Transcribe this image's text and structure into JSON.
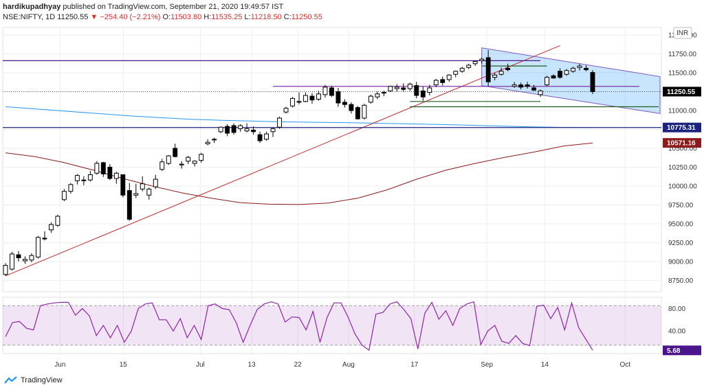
{
  "header": {
    "publisher": "hardikupadhyay",
    "published_text": "published on TradingView.com, September 21, 2020 19:49:57 IST",
    "symbol": "NSE:NIFTY, 1D",
    "last": "11250.55",
    "change": "−254.40 (−2.21%)",
    "o_label": "O:",
    "o_value": "11503.80",
    "h_label": "H:",
    "h_value": "11535.25",
    "l_label": "L:",
    "l_value": "11218.50",
    "c_label": "C:",
    "c_value": "11250.55"
  },
  "currency": "INR",
  "price_labels": {
    "last": "11250.55",
    "blue_ma": "10775.31",
    "red_ma": "10571.16",
    "rsi": "5.68"
  },
  "brand": "TradingView",
  "colors": {
    "bull": "#ffffff",
    "bear": "#000000",
    "purple": "#4a148c",
    "blue_ma": "#2196f3",
    "red_ma": "#8b1a1a",
    "trend": "#c62828",
    "green_level": "#1b5e20",
    "rsi": "#8e24aa",
    "channel_fill": "rgba(33,150,243,0.25)"
  },
  "chart_data": [
    {
      "type": "candlestick",
      "title": "NSE:NIFTY, 1D",
      "x_ticks": [
        "Jun",
        "15",
        "Jul",
        "13",
        "22",
        "Aug",
        "17",
        "Sep",
        "14",
        "Oct"
      ],
      "y_ticks": [
        12000,
        11750,
        11500,
        11250,
        11000,
        10750,
        10500,
        10250,
        10000,
        9750,
        9500,
        9250,
        9000,
        8750
      ],
      "y_tick_labels": [
        "12000.00",
        "11750.00",
        "11500.00",
        "11250.00",
        "11000.00",
        "10750.00",
        "10500.00",
        "10250.00",
        "10000.00",
        "9750.00",
        "9500.00",
        "9250.00",
        "9000.00",
        "8750.00"
      ],
      "ylim": [
        8600,
        12100
      ],
      "candles": [
        {
          "o": 8830,
          "h": 8980,
          "l": 8810,
          "c": 8950
        },
        {
          "o": 8900,
          "h": 9130,
          "l": 8880,
          "c": 9100
        },
        {
          "o": 9090,
          "h": 9140,
          "l": 9000,
          "c": 9050
        },
        {
          "o": 9010,
          "h": 9070,
          "l": 8970,
          "c": 9030
        },
        {
          "o": 9020,
          "h": 9110,
          "l": 8990,
          "c": 9080
        },
        {
          "o": 9060,
          "h": 9340,
          "l": 9040,
          "c": 9320
        },
        {
          "o": 9310,
          "h": 9400,
          "l": 9280,
          "c": 9300
        },
        {
          "o": 9420,
          "h": 9520,
          "l": 9380,
          "c": 9490
        },
        {
          "o": 9480,
          "h": 9620,
          "l": 9460,
          "c": 9600
        },
        {
          "o": 9820,
          "h": 9960,
          "l": 9800,
          "c": 9930
        },
        {
          "o": 9930,
          "h": 10040,
          "l": 9900,
          "c": 10020
        },
        {
          "o": 10070,
          "h": 10160,
          "l": 10020,
          "c": 10140
        },
        {
          "o": 10080,
          "h": 10130,
          "l": 10010,
          "c": 10070
        },
        {
          "o": 10080,
          "h": 10200,
          "l": 10060,
          "c": 10150
        },
        {
          "o": 10170,
          "h": 10330,
          "l": 10150,
          "c": 10300
        },
        {
          "o": 10310,
          "h": 10320,
          "l": 10120,
          "c": 10160
        },
        {
          "o": 10250,
          "h": 10290,
          "l": 10080,
          "c": 10100
        },
        {
          "o": 10100,
          "h": 10190,
          "l": 10030,
          "c": 10170
        },
        {
          "o": 10150,
          "h": 10150,
          "l": 9850,
          "c": 9880
        },
        {
          "o": 9940,
          "h": 10040,
          "l": 9540,
          "c": 9560
        },
        {
          "o": 9880,
          "h": 10030,
          "l": 9840,
          "c": 9900
        },
        {
          "o": 9960,
          "h": 10130,
          "l": 9930,
          "c": 10030
        },
        {
          "o": 9880,
          "h": 9980,
          "l": 9820,
          "c": 9960
        },
        {
          "o": 9990,
          "h": 10150,
          "l": 9960,
          "c": 10090
        },
        {
          "o": 10220,
          "h": 10360,
          "l": 10200,
          "c": 10320
        },
        {
          "o": 10300,
          "h": 10410,
          "l": 10280,
          "c": 10400
        },
        {
          "o": 10500,
          "h": 10560,
          "l": 10380,
          "c": 10390
        },
        {
          "o": 10280,
          "h": 10330,
          "l": 10230,
          "c": 10290
        },
        {
          "o": 10330,
          "h": 10400,
          "l": 10290,
          "c": 10380
        },
        {
          "o": 10300,
          "h": 10340,
          "l": 10260,
          "c": 10330
        },
        {
          "o": 10340,
          "h": 10440,
          "l": 10310,
          "c": 10420
        },
        {
          "o": 10560,
          "h": 10620,
          "l": 10540,
          "c": 10580
        },
        {
          "o": 10610,
          "h": 10640,
          "l": 10570,
          "c": 10620
        },
        {
          "o": 10720,
          "h": 10790,
          "l": 10700,
          "c": 10780
        },
        {
          "o": 10790,
          "h": 10820,
          "l": 10660,
          "c": 10700
        },
        {
          "o": 10800,
          "h": 10830,
          "l": 10680,
          "c": 10710
        },
        {
          "o": 10760,
          "h": 10820,
          "l": 10720,
          "c": 10800
        },
        {
          "o": 10730,
          "h": 10830,
          "l": 10710,
          "c": 10760
        },
        {
          "o": 10740,
          "h": 10790,
          "l": 10680,
          "c": 10720
        },
        {
          "o": 10680,
          "h": 10720,
          "l": 10570,
          "c": 10600
        },
        {
          "o": 10620,
          "h": 10720,
          "l": 10600,
          "c": 10690
        },
        {
          "o": 10720,
          "h": 10770,
          "l": 10650,
          "c": 10760
        },
        {
          "o": 10780,
          "h": 10920,
          "l": 10760,
          "c": 10900
        },
        {
          "o": 10980,
          "h": 11050,
          "l": 10960,
          "c": 11030
        },
        {
          "o": 11060,
          "h": 11180,
          "l": 11040,
          "c": 11160
        },
        {
          "o": 11120,
          "h": 11240,
          "l": 11080,
          "c": 11110
        },
        {
          "o": 11120,
          "h": 11240,
          "l": 11110,
          "c": 11200
        },
        {
          "o": 11190,
          "h": 11230,
          "l": 11090,
          "c": 11140
        },
        {
          "o": 11150,
          "h": 11260,
          "l": 11130,
          "c": 11220
        },
        {
          "o": 11210,
          "h": 11340,
          "l": 11170,
          "c": 11310
        },
        {
          "o": 11300,
          "h": 11330,
          "l": 11180,
          "c": 11200
        },
        {
          "o": 11250,
          "h": 11300,
          "l": 11050,
          "c": 11100
        },
        {
          "o": 11110,
          "h": 11150,
          "l": 11040,
          "c": 11080
        },
        {
          "o": 11080,
          "h": 11110,
          "l": 10960,
          "c": 11000
        },
        {
          "o": 11040,
          "h": 11060,
          "l": 10880,
          "c": 10890
        },
        {
          "o": 10900,
          "h": 11090,
          "l": 10880,
          "c": 11070
        },
        {
          "o": 11110,
          "h": 11210,
          "l": 11090,
          "c": 11190
        },
        {
          "o": 11180,
          "h": 11250,
          "l": 11150,
          "c": 11220
        },
        {
          "o": 11230,
          "h": 11260,
          "l": 11190,
          "c": 11240
        },
        {
          "o": 11260,
          "h": 11330,
          "l": 11250,
          "c": 11320
        },
        {
          "o": 11290,
          "h": 11350,
          "l": 11250,
          "c": 11310
        },
        {
          "o": 11300,
          "h": 11360,
          "l": 11250,
          "c": 11280
        },
        {
          "o": 11290,
          "h": 11370,
          "l": 11260,
          "c": 11350
        },
        {
          "o": 11330,
          "h": 11380,
          "l": 11160,
          "c": 11200
        },
        {
          "o": 11260,
          "h": 11320,
          "l": 11130,
          "c": 11180
        },
        {
          "o": 11240,
          "h": 11340,
          "l": 11200,
          "c": 11300
        },
        {
          "o": 11340,
          "h": 11420,
          "l": 11310,
          "c": 11400
        },
        {
          "o": 11410,
          "h": 11450,
          "l": 11330,
          "c": 11370
        },
        {
          "o": 11410,
          "h": 11480,
          "l": 11380,
          "c": 11470
        },
        {
          "o": 11480,
          "h": 11530,
          "l": 11440,
          "c": 11520
        },
        {
          "o": 11520,
          "h": 11580,
          "l": 11500,
          "c": 11560
        },
        {
          "o": 11570,
          "h": 11620,
          "l": 11550,
          "c": 11600
        },
        {
          "o": 11620,
          "h": 11660,
          "l": 11590,
          "c": 11650
        },
        {
          "o": 11660,
          "h": 11700,
          "l": 11620,
          "c": 11680
        },
        {
          "o": 11700,
          "h": 11800,
          "l": 11320,
          "c": 11380
        },
        {
          "o": 11440,
          "h": 11500,
          "l": 11400,
          "c": 11470
        },
        {
          "o": 11480,
          "h": 11570,
          "l": 11460,
          "c": 11520
        },
        {
          "o": 11560,
          "h": 11620,
          "l": 11520,
          "c": 11540
        },
        {
          "o": 11320,
          "h": 11380,
          "l": 11300,
          "c": 11340
        },
        {
          "o": 11340,
          "h": 11370,
          "l": 11280,
          "c": 11310
        },
        {
          "o": 11340,
          "h": 11380,
          "l": 11290,
          "c": 11320
        },
        {
          "o": 11300,
          "h": 11340,
          "l": 11260,
          "c": 11270
        },
        {
          "o": 11210,
          "h": 11280,
          "l": 11180,
          "c": 11260
        },
        {
          "o": 11340,
          "h": 11460,
          "l": 11320,
          "c": 11440
        },
        {
          "o": 11460,
          "h": 11480,
          "l": 11420,
          "c": 11430
        },
        {
          "o": 11520,
          "h": 11560,
          "l": 11420,
          "c": 11440
        },
        {
          "o": 11480,
          "h": 11550,
          "l": 11460,
          "c": 11530
        },
        {
          "o": 11520,
          "h": 11580,
          "l": 11500,
          "c": 11560
        },
        {
          "o": 11570,
          "h": 11620,
          "l": 11530,
          "c": 11590
        },
        {
          "o": 11560,
          "h": 11600,
          "l": 11520,
          "c": 11540
        },
        {
          "o": 11503.8,
          "h": 11535.25,
          "l": 11218.5,
          "c": 11250.55
        }
      ],
      "blue_ma": [
        11050,
        11020,
        10990,
        10960,
        10930,
        10905,
        10885,
        10870,
        10860,
        10850,
        10845,
        10840,
        10832,
        10824,
        10815,
        10805,
        10795,
        10785,
        10777,
        10775
      ],
      "red_ma": [
        10440,
        10390,
        10310,
        10210,
        10100,
        10000,
        9910,
        9840,
        9780,
        9760,
        9755,
        9775,
        9840,
        9950,
        10090,
        10210,
        10300,
        10380,
        10450,
        10530,
        10571
      ],
      "levels": [
        11660,
        11320,
        10775,
        11120,
        11050
      ],
      "trendline": [
        {
          "x": 0,
          "y": 8810
        },
        {
          "x": 85,
          "y": 11860
        }
      ]
    },
    {
      "type": "line",
      "title": "RSI",
      "y_ticks": [
        80,
        40
      ],
      "y_tick_labels": [
        "80.00",
        "40.00"
      ],
      "ylim": [
        0,
        100
      ],
      "upper": 85,
      "lower": 15,
      "last": 5.68,
      "values": [
        30,
        55,
        57,
        45,
        42,
        85,
        88,
        90,
        91,
        91,
        68,
        80,
        67,
        32,
        50,
        28,
        50,
        20,
        40,
        80,
        88,
        90,
        60,
        60,
        40,
        62,
        28,
        50,
        25,
        85,
        88,
        80,
        78,
        55,
        20,
        50,
        78,
        88,
        92,
        88,
        56,
        65,
        64,
        42,
        75,
        20,
        64,
        90,
        90,
        65,
        35,
        15,
        6,
        70,
        73,
        88,
        92,
        78,
        62,
        8,
        72,
        91,
        61,
        76,
        50,
        80,
        88,
        92,
        16,
        40,
        50,
        22,
        18,
        32,
        18,
        14,
        84,
        86,
        62,
        82,
        42,
        90,
        46,
        26,
        6
      ]
    }
  ]
}
